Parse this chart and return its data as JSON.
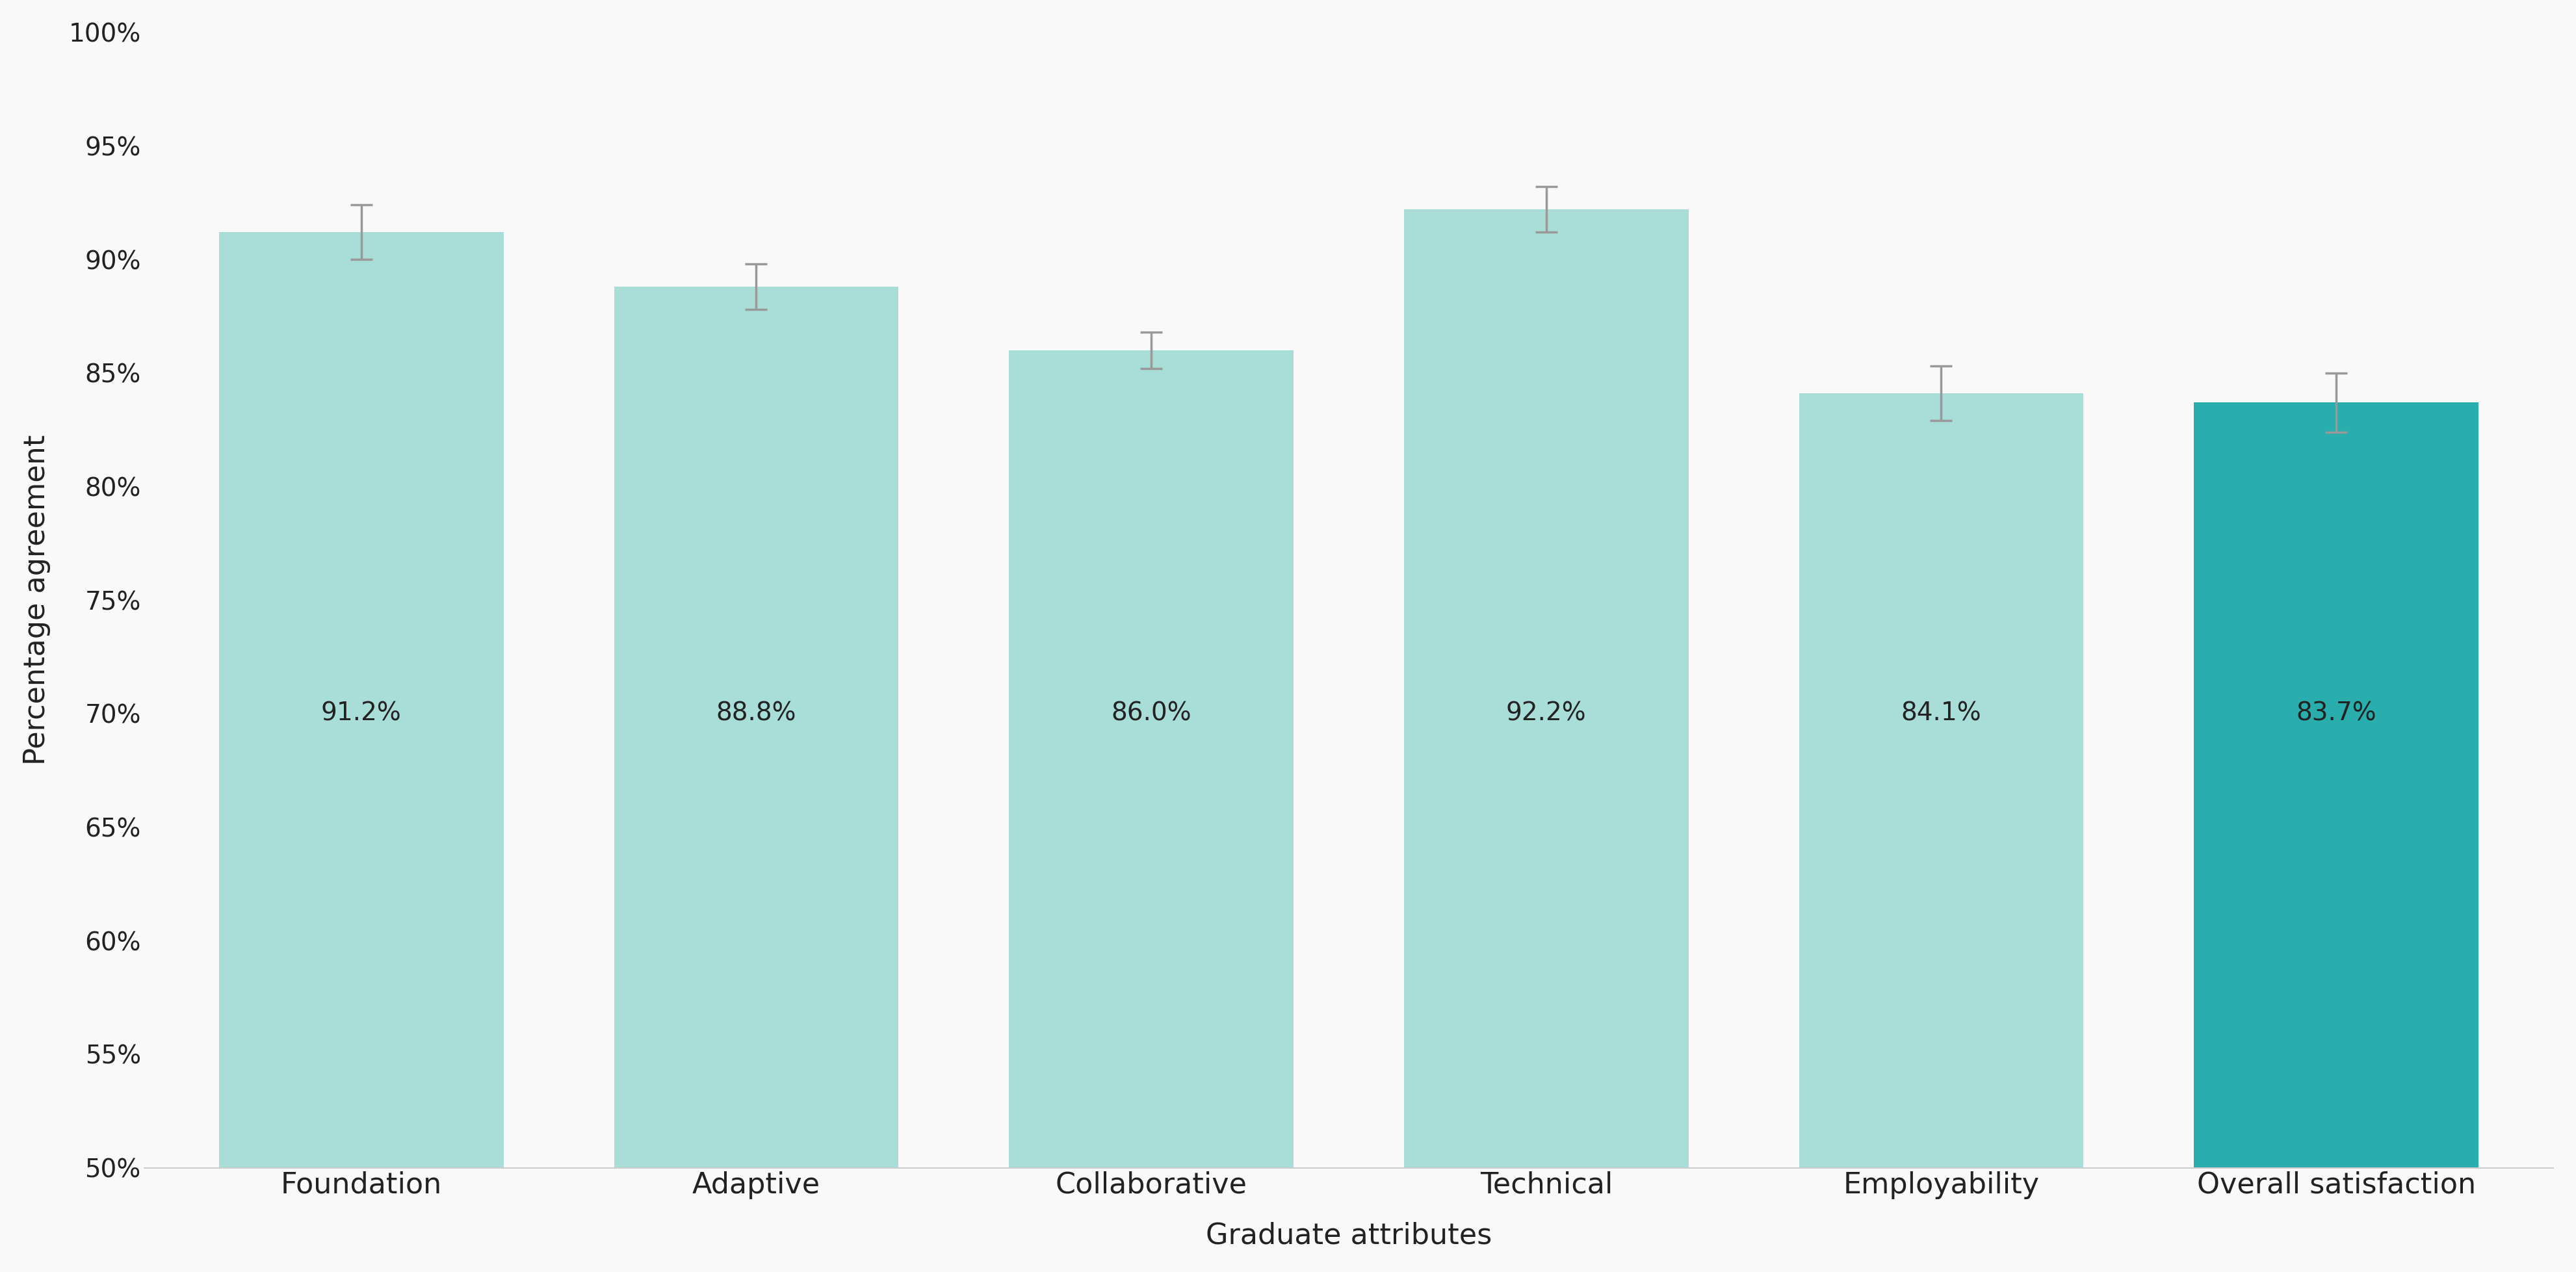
{
  "categories": [
    "Foundation",
    "Adaptive",
    "Collaborative",
    "Technical",
    "Employability",
    "Overall satisfaction"
  ],
  "values": [
    91.2,
    88.8,
    86.0,
    92.2,
    84.1,
    83.7
  ],
  "errors": [
    1.2,
    1.0,
    0.8,
    1.0,
    1.2,
    1.3
  ],
  "bar_colors": [
    "#A8DDD8",
    "#A8DDD8",
    "#A8DDD8",
    "#A8DDD8",
    "#A8DDD8",
    "#2AADAD"
  ],
  "error_color": "#999999",
  "xlabel": "Graduate attributes",
  "ylabel": "Percentage agreement",
  "ylim_min": 50,
  "ylim_max": 100,
  "yticks": [
    50,
    55,
    60,
    65,
    70,
    75,
    80,
    85,
    90,
    95,
    100
  ],
  "ytick_labels": [
    "50%",
    "55%",
    "60%",
    "65%",
    "70%",
    "75%",
    "80%",
    "85%",
    "90%",
    "95%",
    "100%"
  ],
  "label_fontsize": 32,
  "tick_fontsize": 28,
  "value_label_fontsize": 28,
  "bar_width": 0.72,
  "background_color": "#f9f9f9",
  "text_color": "#222222",
  "xlabel_fontsize": 32,
  "ylabel_fontsize": 32
}
